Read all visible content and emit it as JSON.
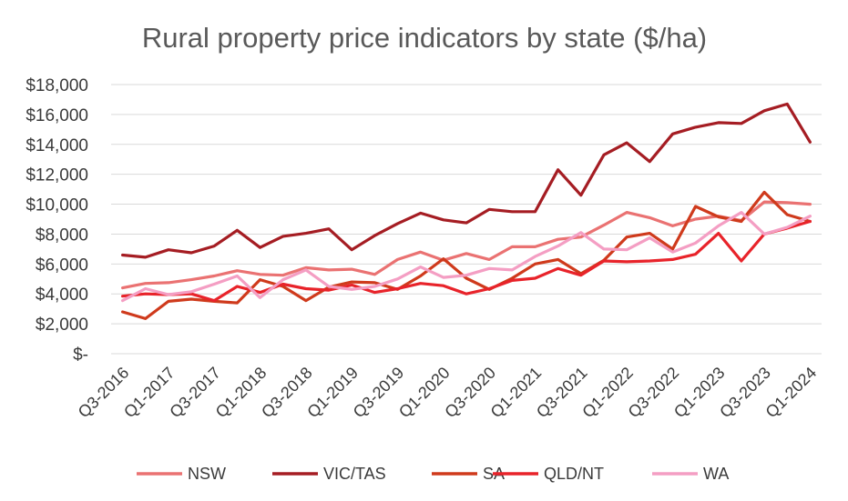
{
  "chart_data": {
    "type": "line",
    "title": "Rural property price indicators by state ($/ha)",
    "xlabel": "",
    "ylabel": "",
    "ylim": [
      0,
      18000
    ],
    "y_ticks": [
      0,
      2000,
      4000,
      6000,
      8000,
      10000,
      12000,
      14000,
      16000,
      18000
    ],
    "y_tick_labels": [
      "$-",
      "$2,000",
      "$4,000",
      "$6,000",
      "$8,000",
      "$10,000",
      "$12,000",
      "$14,000",
      "$16,000",
      "$18,000"
    ],
    "grid": true,
    "legend_position": "bottom",
    "categories": [
      "Q3-2016",
      "Q4-2016",
      "Q1-2017",
      "Q2-2017",
      "Q3-2017",
      "Q4-2017",
      "Q1-2018",
      "Q2-2018",
      "Q3-2018",
      "Q4-2018",
      "Q1-2019",
      "Q2-2019",
      "Q3-2019",
      "Q4-2019",
      "Q1-2020",
      "Q2-2020",
      "Q3-2020",
      "Q4-2020",
      "Q1-2021",
      "Q2-2021",
      "Q3-2021",
      "Q4-2021",
      "Q1-2022",
      "Q2-2022",
      "Q3-2022",
      "Q4-2022",
      "Q1-2023",
      "Q2-2023",
      "Q3-2023",
      "Q4-2023",
      "Q1-2024"
    ],
    "x_tick_labels": [
      "Q3-2016",
      "",
      "Q1-2017",
      "",
      "Q3-2017",
      "",
      "Q1-2018",
      "",
      "Q3-2018",
      "",
      "Q1-2019",
      "",
      "Q3-2019",
      "",
      "Q1-2020",
      "",
      "Q3-2020",
      "",
      "Q1-2021",
      "",
      "Q3-2021",
      "",
      "Q1-2022",
      "",
      "Q3-2022",
      "",
      "Q1-2023",
      "",
      "Q3-2023",
      "",
      "Q1-2024"
    ],
    "series": [
      {
        "name": "NSW",
        "color": "#ea7272",
        "values": [
          4400,
          4700,
          4750,
          4950,
          5200,
          5550,
          5300,
          5250,
          5750,
          5600,
          5650,
          5300,
          6300,
          6800,
          6250,
          6700,
          6300,
          7150,
          7150,
          7650,
          7800,
          8600,
          9450,
          9100,
          8550,
          9000,
          9200,
          8900,
          10150,
          10100,
          10000
        ]
      },
      {
        "name": "VIC/TAS",
        "color": "#a51d23",
        "values": [
          6600,
          6450,
          6950,
          6750,
          7200,
          8250,
          7100,
          7850,
          8050,
          8350,
          6950,
          7900,
          8700,
          9400,
          8950,
          8750,
          9650,
          9500,
          9500,
          12300,
          10600,
          13300,
          14100,
          12850,
          14700,
          15150,
          15450,
          15400,
          16250,
          16700,
          14150
        ]
      },
      {
        "name": "SA",
        "color": "#cf3a1c",
        "values": [
          2800,
          2350,
          3500,
          3650,
          3500,
          3400,
          4950,
          4500,
          3550,
          4450,
          4800,
          4750,
          4300,
          5200,
          6350,
          5050,
          4300,
          5050,
          6000,
          6300,
          5350,
          6250,
          7800,
          8050,
          7000,
          9850,
          9150,
          8850,
          10800,
          9300,
          8850
        ]
      },
      {
        "name": "QLD/NT",
        "color": "#e8232a",
        "values": [
          3850,
          4000,
          3950,
          4000,
          3550,
          4500,
          4100,
          4650,
          4350,
          4250,
          4600,
          4100,
          4350,
          4700,
          4550,
          4000,
          4350,
          4900,
          5050,
          5700,
          5250,
          6200,
          6150,
          6200,
          6300,
          6650,
          8050,
          6200,
          8000,
          8400,
          8850
        ]
      },
      {
        "name": "WA",
        "color": "#f49ec3",
        "values": [
          3550,
          4350,
          3950,
          4150,
          4650,
          5200,
          3750,
          4950,
          5600,
          4500,
          4300,
          4500,
          5000,
          5800,
          5100,
          5250,
          5700,
          5600,
          6500,
          7200,
          8100,
          7000,
          6950,
          7750,
          6800,
          7400,
          8550,
          9450,
          8000,
          8450,
          9200
        ]
      }
    ]
  }
}
